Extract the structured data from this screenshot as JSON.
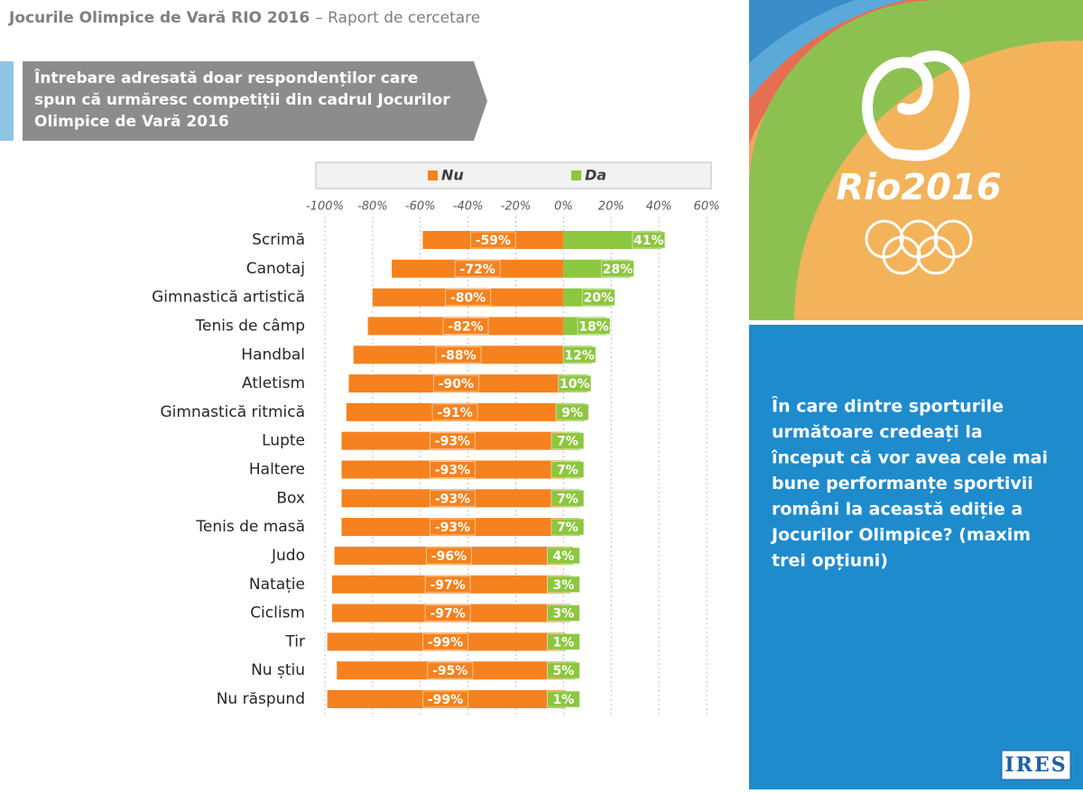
{
  "header": {
    "title": "Jocurile Olimpice de Vară RIO 2016",
    "subtitle": "– Raport de cercetare"
  },
  "note": {
    "lines": [
      "Întrebare adresată doar respondenților care",
      "spun că urmăresc competiții din cadrul Jocurilor",
      "Olimpice de Vară 2016"
    ]
  },
  "question": {
    "lines": [
      "În care dintre sporturile",
      "următoare credeați la",
      "început că vor avea cele mai",
      "bune performanțe sportivii",
      "români la această ediție a",
      "Jocurilor Olimpice? (maxim",
      "trei opțiuni)"
    ]
  },
  "logo": {
    "text": "Rio2016"
  },
  "footer": {
    "brand": "IRES"
  },
  "chart_data": {
    "type": "diverging-bar",
    "categories": [
      "Scrimă",
      "Canotaj",
      "Gimnastică artistică",
      "Tenis de câmp",
      "Handbal",
      "Atletism",
      "Gimnastică ritmică",
      "Lupte",
      "Haltere",
      "Box",
      "Tenis de masă",
      "Judo",
      "Natație",
      "Ciclism",
      "Tir",
      "Nu știu",
      "Nu răspund"
    ],
    "series": [
      {
        "name": "Nu",
        "color": "#f5821f",
        "values": [
          -59,
          -72,
          -80,
          -82,
          -88,
          -90,
          -91,
          -93,
          -93,
          -93,
          -93,
          -96,
          -97,
          -97,
          -99,
          -95,
          -99
        ],
        "value_labels": [
          "-59%",
          "-72%",
          "-80%",
          "-82%",
          "-88%",
          "-90%",
          "-91%",
          "-93%",
          "-93%",
          "-93%",
          "-93%",
          "-96%",
          "-97%",
          "-97%",
          "-99%",
          "-95%",
          "-99%"
        ]
      },
      {
        "name": "Da",
        "color": "#8dc63f",
        "values": [
          41,
          28,
          20,
          18,
          12,
          10,
          9,
          7,
          7,
          7,
          7,
          4,
          3,
          3,
          1,
          5,
          1
        ],
        "value_labels": [
          "41%",
          "28%",
          "20%",
          "18%",
          "12%",
          "10%",
          "9%",
          "7%",
          "7%",
          "7%",
          "7%",
          "4%",
          "3%",
          "3%",
          "1%",
          "5%",
          "1%"
        ]
      }
    ],
    "xlim": [
      -100,
      60
    ],
    "xticks": [
      {
        "value": -100,
        "label": "-100%"
      },
      {
        "value": -80,
        "label": "-80%"
      },
      {
        "value": -60,
        "label": "-60%"
      },
      {
        "value": -40,
        "label": "-40%"
      },
      {
        "value": -20,
        "label": "-20%"
      },
      {
        "value": 0,
        "label": "0%"
      },
      {
        "value": 20,
        "label": "20%"
      },
      {
        "value": 40,
        "label": "40%"
      },
      {
        "value": 60,
        "label": "60%"
      }
    ],
    "grid": true
  }
}
